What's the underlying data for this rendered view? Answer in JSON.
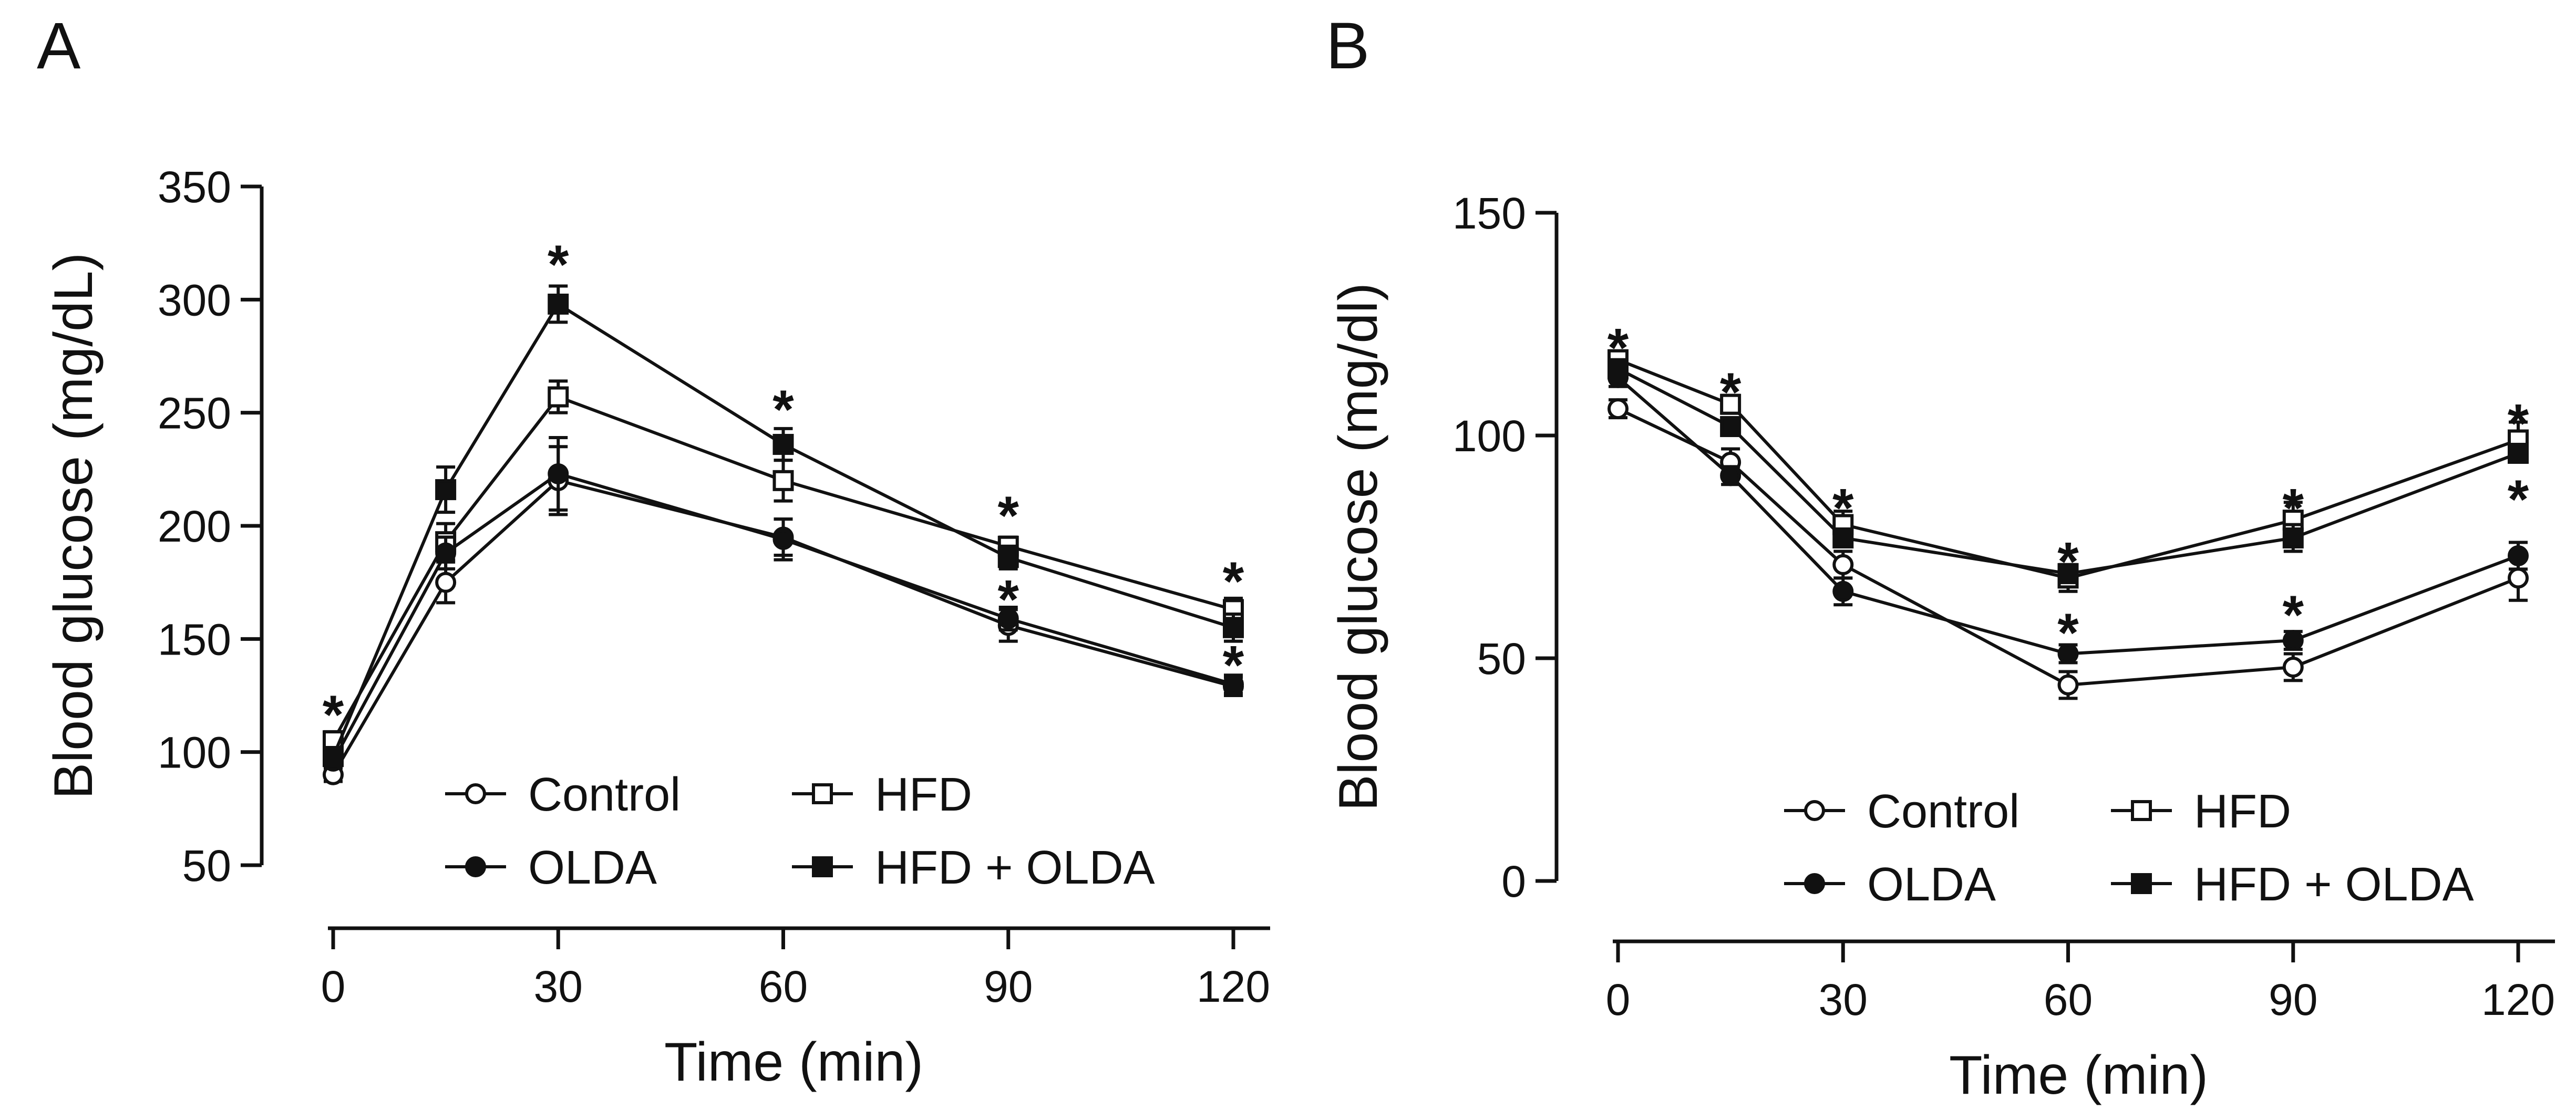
{
  "chart_data": [
    {
      "type": "line",
      "panel_label": "A",
      "xlabel": "Time (min)",
      "ylabel": "Blood glucose (mg/dL)",
      "xlim": [
        0,
        120
      ],
      "ylim": [
        50,
        350
      ],
      "x_ticks": [
        0,
        30,
        60,
        90,
        120
      ],
      "x_tick_labels": [
        "0",
        "30",
        "60",
        "90",
        "120"
      ],
      "y_ticks": [
        50,
        100,
        150,
        200,
        250,
        300,
        350
      ],
      "y_tick_labels": [
        "50",
        "100",
        "150",
        "200",
        "250",
        "300",
        "350"
      ],
      "x": [
        0,
        15,
        30,
        60,
        90,
        120
      ],
      "series": [
        {
          "name": "Control",
          "marker": "circle-open",
          "values": [
            90,
            175,
            220,
            195,
            156,
            129
          ],
          "errors": [
            3,
            9,
            15,
            8,
            7,
            4
          ]
        },
        {
          "name": "HFD",
          "marker": "square-open",
          "values": [
            105,
            193,
            257,
            220,
            191,
            163
          ],
          "errors": [
            4,
            8,
            7,
            9,
            4,
            5
          ]
        },
        {
          "name": "OLDA",
          "marker": "circle-filled",
          "values": [
            96,
            188,
            223,
            194,
            159,
            130
          ],
          "errors": [
            3,
            7,
            16,
            9,
            5,
            4
          ]
        },
        {
          "name": "HFD + OLDA",
          "marker": "square-filled",
          "values": [
            98,
            216,
            298,
            236,
            186,
            155
          ],
          "errors": [
            4,
            10,
            8,
            7,
            5,
            6
          ]
        }
      ],
      "annotations": [
        {
          "text": "*",
          "x": 0,
          "y": 121
        },
        {
          "text": "*",
          "x": 30,
          "y": 320
        },
        {
          "text": "*",
          "x": 60,
          "y": 256
        },
        {
          "text": "*",
          "x": 90,
          "y": 209
        },
        {
          "text": "*",
          "x": 90,
          "y": 172
        },
        {
          "text": "*",
          "x": 120,
          "y": 180
        },
        {
          "text": "*",
          "x": 120,
          "y": 143
        }
      ],
      "legend": {
        "placement": "bottom-right",
        "entries": [
          {
            "label": "Control",
            "marker": "circle-open"
          },
          {
            "label": "HFD",
            "marker": "square-open"
          },
          {
            "label": "OLDA",
            "marker": "circle-filled"
          },
          {
            "label": "HFD + OLDA",
            "marker": "square-filled"
          }
        ]
      }
    },
    {
      "type": "line",
      "panel_label": "B",
      "xlabel": "Time (min)",
      "ylabel": "Blood glucose (mg/dl)",
      "xlim": [
        0,
        120
      ],
      "ylim": [
        0,
        150
      ],
      "x_ticks": [
        0,
        30,
        60,
        90,
        120
      ],
      "x_tick_labels": [
        "0",
        "30",
        "60",
        "90",
        "120"
      ],
      "y_ticks": [
        0,
        50,
        100,
        150
      ],
      "y_tick_labels": [
        "0",
        "50",
        "100",
        "150"
      ],
      "x": [
        0,
        15,
        30,
        60,
        90,
        120
      ],
      "series": [
        {
          "name": "Control",
          "marker": "circle-open",
          "values": [
            106,
            94,
            71,
            44,
            48,
            68
          ],
          "errors": [
            2,
            3,
            3,
            3,
            3,
            5
          ]
        },
        {
          "name": "HFD",
          "marker": "square-open",
          "values": [
            117,
            107,
            80,
            68,
            81,
            99
          ],
          "errors": [
            2,
            2,
            3,
            3,
            4,
            4
          ]
        },
        {
          "name": "OLDA",
          "marker": "circle-filled",
          "values": [
            113,
            91,
            65,
            51,
            54,
            73
          ],
          "errors": [
            2,
            2,
            3,
            2,
            2,
            3
          ]
        },
        {
          "name": "HFD + OLDA",
          "marker": "square-filled",
          "values": [
            115,
            102,
            77,
            69,
            77,
            96
          ],
          "errors": [
            2,
            2,
            2,
            2,
            3,
            2
          ]
        }
      ],
      "annotations": [
        {
          "text": "*",
          "x": 0,
          "y": 122
        },
        {
          "text": "*",
          "x": 15,
          "y": 112
        },
        {
          "text": "*",
          "x": 30,
          "y": 86
        },
        {
          "text": "*",
          "x": 60,
          "y": 74
        },
        {
          "text": "*",
          "x": 60,
          "y": 58
        },
        {
          "text": "*",
          "x": 90,
          "y": 86
        },
        {
          "text": "*",
          "x": 90,
          "y": 62
        },
        {
          "text": "*",
          "x": 120,
          "y": 105
        },
        {
          "text": "*",
          "x": 120,
          "y": 88
        }
      ],
      "legend": {
        "placement": "bottom-right",
        "entries": [
          {
            "label": "Control",
            "marker": "circle-open"
          },
          {
            "label": "HFD",
            "marker": "square-open"
          },
          {
            "label": "OLDA",
            "marker": "circle-filled"
          },
          {
            "label": "HFD + OLDA",
            "marker": "square-filled"
          }
        ]
      }
    }
  ]
}
